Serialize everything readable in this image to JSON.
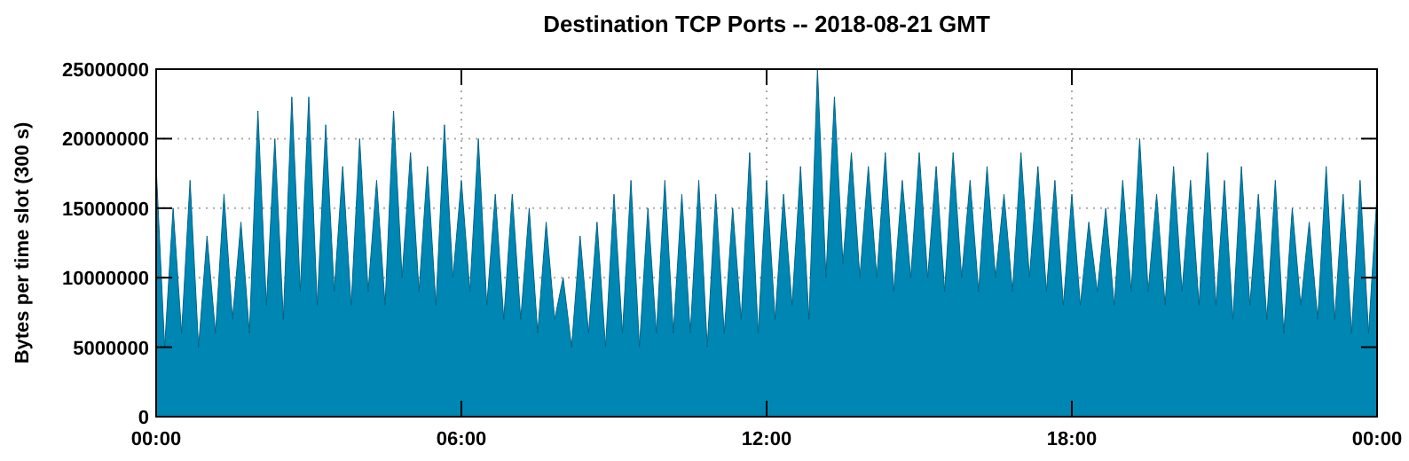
{
  "chart_data": {
    "type": "area",
    "title": "Destination TCP Ports -- 2018-08-21 GMT",
    "ylabel": "Bytes per time slot (300 s)",
    "x": [
      0,
      0.1667,
      0.3333,
      0.5,
      0.6667,
      0.8333,
      1,
      1.1667,
      1.3333,
      1.5,
      1.6667,
      1.8333,
      2,
      2.1667,
      2.3333,
      2.5,
      2.6667,
      2.8333,
      3,
      3.1667,
      3.3333,
      3.5,
      3.6667,
      3.8333,
      4,
      4.1667,
      4.3333,
      4.5,
      4.6667,
      4.8333,
      5,
      5.1667,
      5.3333,
      5.5,
      5.6667,
      5.8333,
      6,
      6.1667,
      6.3333,
      6.5,
      6.6667,
      6.8333,
      7,
      7.1667,
      7.3333,
      7.5,
      7.6667,
      7.8333,
      8,
      8.1667,
      8.3333,
      8.5,
      8.6667,
      8.8333,
      9,
      9.1667,
      9.3333,
      9.5,
      9.6667,
      9.8333,
      10,
      10.1667,
      10.3333,
      10.5,
      10.6667,
      10.8333,
      11,
      11.1667,
      11.3333,
      11.5,
      11.6667,
      11.8333,
      12,
      12.1667,
      12.3333,
      12.5,
      12.6667,
      12.8333,
      13,
      13.1667,
      13.3333,
      13.5,
      13.6667,
      13.8333,
      14,
      14.1667,
      14.3333,
      14.5,
      14.6667,
      14.8333,
      15,
      15.1667,
      15.3333,
      15.5,
      15.6667,
      15.8333,
      16,
      16.1667,
      16.3333,
      16.5,
      16.6667,
      16.8333,
      17,
      17.1667,
      17.3333,
      17.5,
      17.6667,
      17.8333,
      18,
      18.1667,
      18.3333,
      18.5,
      18.6667,
      18.8333,
      19,
      19.1667,
      19.3333,
      19.5,
      19.6667,
      19.8333,
      20,
      20.1667,
      20.3333,
      20.5,
      20.6667,
      20.8333,
      21,
      21.1667,
      21.3333,
      21.5,
      21.6667,
      21.8333,
      22,
      22.1667,
      22.3333,
      22.5,
      22.6667,
      22.8333,
      23,
      23.1667,
      23.3333,
      23.5,
      23.6667,
      23.8333,
      24
    ],
    "series": [
      {
        "color": "#0086b3",
        "values": [
          18000000,
          5000000,
          15000000,
          6000000,
          17000000,
          5000000,
          13000000,
          6000000,
          16000000,
          7000000,
          14000000,
          6000000,
          22000000,
          8000000,
          20000000,
          7000000,
          23000000,
          9000000,
          23000000,
          8000000,
          21000000,
          9000000,
          18000000,
          8000000,
          20000000,
          9000000,
          17000000,
          8000000,
          22000000,
          10000000,
          19000000,
          9000000,
          18000000,
          8000000,
          21000000,
          10000000,
          17000000,
          9000000,
          20000000,
          8000000,
          16000000,
          7000000,
          16000000,
          7000000,
          15000000,
          6000000,
          14000000,
          7000000,
          10000000,
          5000000,
          13000000,
          6000000,
          14000000,
          5000000,
          16000000,
          6000000,
          17000000,
          5000000,
          15000000,
          6000000,
          17000000,
          6000000,
          16000000,
          6000000,
          17000000,
          5000000,
          16000000,
          6000000,
          15000000,
          7000000,
          19000000,
          6000000,
          17000000,
          7000000,
          16000000,
          8000000,
          18000000,
          7000000,
          25000000,
          10000000,
          23000000,
          11000000,
          19000000,
          10000000,
          18000000,
          10000000,
          19000000,
          9000000,
          17000000,
          10000000,
          19000000,
          10000000,
          18000000,
          9000000,
          19000000,
          10000000,
          17000000,
          9000000,
          18000000,
          10000000,
          16000000,
          9000000,
          19000000,
          10000000,
          18000000,
          9000000,
          17000000,
          8000000,
          16000000,
          8000000,
          14000000,
          9000000,
          15000000,
          8000000,
          17000000,
          9000000,
          20000000,
          9000000,
          16000000,
          8000000,
          18000000,
          9000000,
          17000000,
          8000000,
          19000000,
          8000000,
          17000000,
          7000000,
          18000000,
          8000000,
          16000000,
          7000000,
          17000000,
          6000000,
          15000000,
          8000000,
          14000000,
          7000000,
          18000000,
          7000000,
          16000000,
          6000000,
          17000000,
          6000000,
          16000000
        ]
      }
    ],
    "xlim": [
      0,
      24
    ],
    "xticks": [
      {
        "value": 0,
        "label": "00:00"
      },
      {
        "value": 6,
        "label": "06:00"
      },
      {
        "value": 12,
        "label": "12:00"
      },
      {
        "value": 18,
        "label": "18:00"
      },
      {
        "value": 24,
        "label": "00:00"
      }
    ],
    "ylim": [
      0,
      25000000
    ],
    "yticks": [
      0,
      5000000,
      10000000,
      15000000,
      20000000,
      25000000
    ],
    "grid": true
  }
}
